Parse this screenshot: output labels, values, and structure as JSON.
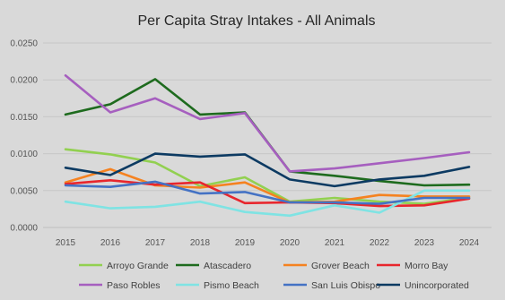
{
  "chart_data": {
    "type": "line",
    "title": "Per Capita Stray Intakes - All Animals",
    "xlabel": "",
    "ylabel": "",
    "x": [
      "2015",
      "2016",
      "2017",
      "2018",
      "2019",
      "2020",
      "2021",
      "2022",
      "2023",
      "2024"
    ],
    "ylim": [
      0,
      0.025
    ],
    "yticks": [
      "0.0000",
      "0.0050",
      "0.0100",
      "0.0150",
      "0.0200",
      "0.0250"
    ],
    "yticks_values": [
      0,
      0.005,
      0.01,
      0.015,
      0.02,
      0.025
    ],
    "grid": true,
    "legend_position": "bottom",
    "series": [
      {
        "name": "Arroyo Grande",
        "color": "#92d050",
        "values": [
          0.0106,
          0.0099,
          0.0088,
          0.0056,
          0.0068,
          0.0035,
          0.004,
          0.0035,
          0.0032,
          0.004
        ]
      },
      {
        "name": "Atascadero",
        "color": "#1e6b1e",
        "values": [
          0.0153,
          0.0167,
          0.0201,
          0.0153,
          0.0156,
          0.0076,
          0.007,
          0.0063,
          0.0057,
          0.0058
        ]
      },
      {
        "name": "Grover Beach",
        "color": "#f58220",
        "values": [
          0.0061,
          0.0079,
          0.0057,
          0.0054,
          0.0061,
          0.0034,
          0.0035,
          0.0044,
          0.0042,
          0.0042
        ]
      },
      {
        "name": "Morro Bay",
        "color": "#e8262d",
        "values": [
          0.0059,
          0.0064,
          0.0058,
          0.0061,
          0.0033,
          0.0034,
          0.0033,
          0.0029,
          0.003,
          0.0039
        ]
      },
      {
        "name": "Paso Robles",
        "color": "#a65fbf",
        "values": [
          0.0206,
          0.0156,
          0.0175,
          0.0147,
          0.0155,
          0.0076,
          0.008,
          0.0087,
          0.0094,
          0.0102
        ]
      },
      {
        "name": "Pismo Beach",
        "color": "#7fe3e3",
        "values": [
          0.0035,
          0.0026,
          0.0028,
          0.0035,
          0.0021,
          0.0016,
          0.003,
          0.002,
          0.005,
          0.005
        ]
      },
      {
        "name": "San Luis Obispo",
        "color": "#4472c4",
        "values": [
          0.0057,
          0.0055,
          0.0062,
          0.0046,
          0.0048,
          0.0034,
          0.0034,
          0.0032,
          0.004,
          0.004
        ]
      },
      {
        "name": "Unincorporated",
        "color": "#0c3a62",
        "values": [
          0.0081,
          0.0071,
          0.01,
          0.0096,
          0.0099,
          0.0065,
          0.0056,
          0.0065,
          0.007,
          0.0082
        ]
      }
    ]
  }
}
